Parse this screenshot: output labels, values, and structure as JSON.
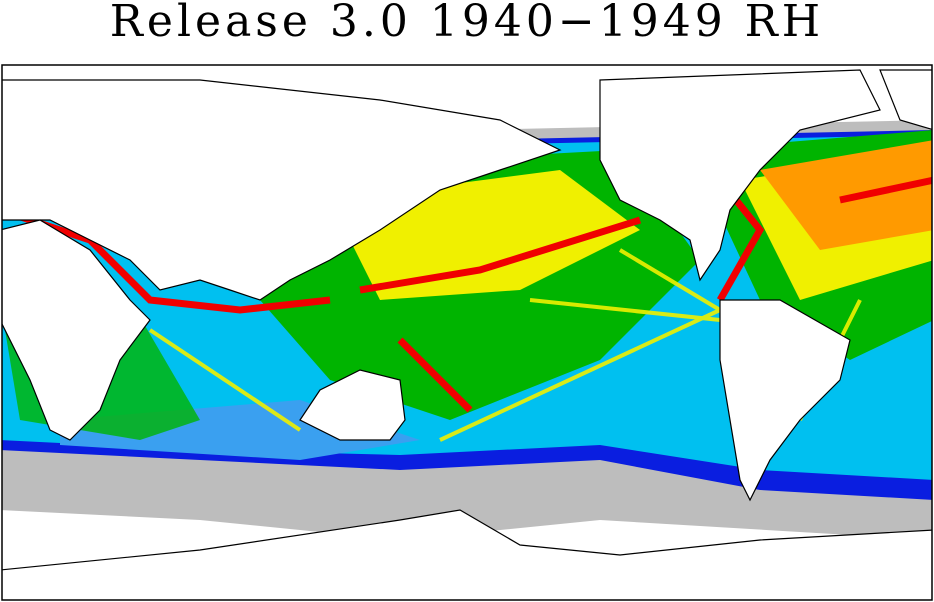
{
  "header": {
    "title": "Release 3.0 1940−1949 RH"
  }
}
